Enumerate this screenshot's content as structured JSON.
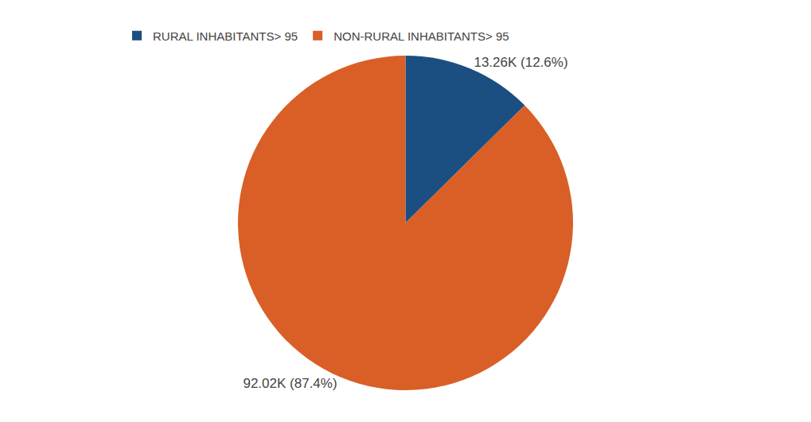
{
  "chart_data": {
    "type": "pie",
    "categories": [
      "RURAL INHABITANTS> 95",
      "NON-RURAL INHABITANTS> 95"
    ],
    "values": [
      12.6,
      87.4
    ],
    "colors": [
      "#1b4f82",
      "#d95f27"
    ],
    "data_labels": true,
    "value_labels": [
      "13.26K (12.6%)",
      "92.02K (87.4%)"
    ],
    "legend": "upper left"
  }
}
